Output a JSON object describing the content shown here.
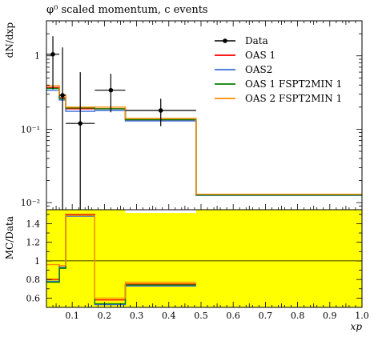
{
  "chart_data": {
    "type": "line",
    "title": "φ⁰ scaled momentum, c events",
    "xlabel": "x_p",
    "ylabel_main": "dN/dx_p",
    "ylabel_ratio": "MC/Data",
    "xlim": [
      0.02,
      1.0
    ],
    "main": {
      "yscale": "log",
      "ylim": [
        0.008,
        3.0
      ],
      "ytick_labels": [
        "1",
        "10⁻¹",
        "10⁻²"
      ],
      "ytick_values": [
        1,
        0.1,
        0.01
      ]
    },
    "ratio": {
      "ylim": [
        0.5,
        1.55
      ],
      "ytick_values": [
        0.6,
        0.8,
        1.0,
        1.2,
        1.4
      ],
      "ytick_labels": [
        "0.6",
        "0.8",
        "1",
        "1.2",
        "1.4"
      ],
      "band_color": "#ffff00"
    },
    "xtick_values": [
      0.1,
      0.2,
      0.3,
      0.4,
      0.5,
      0.6,
      0.7,
      0.8,
      0.9,
      1.0
    ],
    "xtick_labels": [
      "0.1",
      "0.2",
      "0.3",
      "0.4",
      "0.5",
      "0.6",
      "0.7",
      "0.8",
      "0.9",
      "1.0"
    ],
    "data": {
      "name": "Data",
      "color": "#000000",
      "points": [
        {
          "x": 0.04,
          "xlo": 0.02,
          "xhi": 0.06,
          "y": 1.05,
          "ylo": 0.35,
          "yhi": 1.85
        },
        {
          "x": 0.07,
          "xlo": 0.06,
          "xhi": 0.08,
          "y": 0.29,
          "ylo": 0.005,
          "yhi": 1.3
        },
        {
          "x": 0.125,
          "xlo": 0.08,
          "xhi": 0.17,
          "y": 0.12,
          "ylo": 0.005,
          "yhi": 0.6
        },
        {
          "x": 0.22,
          "xlo": 0.17,
          "xhi": 0.265,
          "y": 0.34,
          "ylo": 0.17,
          "yhi": 0.57
        },
        {
          "x": 0.375,
          "xlo": 0.265,
          "xhi": 0.485,
          "y": 0.18,
          "ylo": 0.11,
          "yhi": 0.26
        }
      ]
    },
    "bin_edges": [
      0.02,
      0.06,
      0.08,
      0.17,
      0.265,
      0.485,
      1.0
    ],
    "series": [
      {
        "name": "OAS 1",
        "color": "#ff0000",
        "values": [
          0.37,
          0.27,
          0.19,
          0.19,
          0.135,
          0.0128
        ],
        "ratio": [
          0.8,
          0.95,
          1.5,
          0.58,
          0.75,
          null
        ]
      },
      {
        "name": "OAS2",
        "color": "#3a6bdc",
        "values": [
          0.34,
          0.25,
          0.175,
          0.18,
          0.13,
          0.0125
        ],
        "ratio": [
          0.78,
          0.93,
          1.48,
          0.53,
          0.73,
          null
        ]
      },
      {
        "name": "OAS 1 FSPT2MIN 1",
        "color": "#008000",
        "values": [
          0.36,
          0.26,
          0.195,
          0.19,
          0.135,
          0.0127
        ],
        "ratio": [
          0.77,
          0.92,
          1.49,
          0.54,
          0.74,
          null
        ]
      },
      {
        "name": "OAS 2 FSPT2MIN 1",
        "color": "#ff8c00",
        "values": [
          0.39,
          0.29,
          0.2,
          0.2,
          0.14,
          0.013
        ],
        "ratio": [
          0.96,
          0.95,
          1.49,
          0.6,
          0.77,
          null
        ]
      }
    ],
    "legend_position": "top-right"
  }
}
